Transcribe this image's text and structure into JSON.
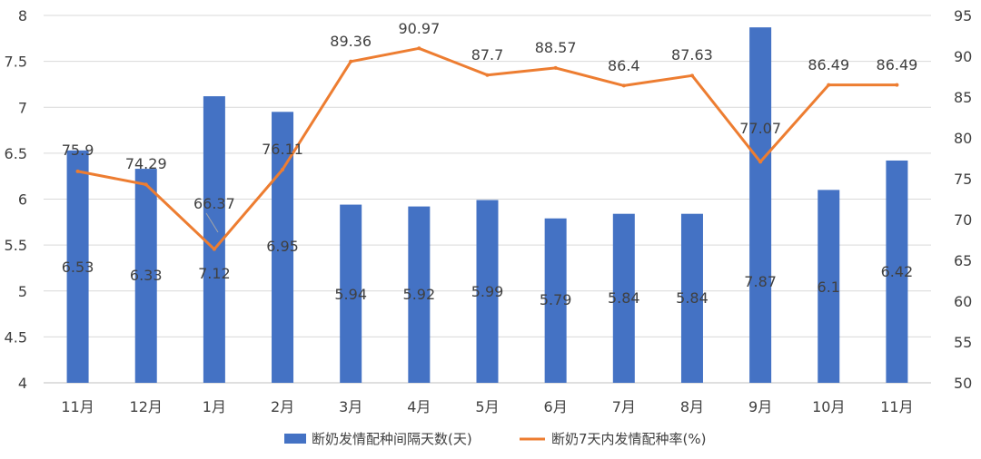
{
  "chart_data": {
    "type": "bar+line",
    "categories": [
      "11月",
      "12月",
      "1月",
      "2月",
      "3月",
      "4月",
      "5月",
      "6月",
      "7月",
      "8月",
      "9月",
      "10月",
      "11月"
    ],
    "series": [
      {
        "name": "断奶发情配种间隔天数(天)",
        "type": "bar",
        "axis": "left",
        "color": "#4472C4",
        "values": [
          6.53,
          6.33,
          7.12,
          6.95,
          5.94,
          5.92,
          5.99,
          5.79,
          5.84,
          5.84,
          7.87,
          6.1,
          6.42
        ],
        "labels": [
          "6.53",
          "6.33",
          "7.12",
          "6.95",
          "5.94",
          "5.92",
          "5.99",
          "5.79",
          "5.84",
          "5.84",
          "7.87",
          "6.1",
          "6.42"
        ]
      },
      {
        "name": "断奶7天内发情配种率(%)",
        "type": "line",
        "axis": "right",
        "color": "#ED7D31",
        "values": [
          75.9,
          74.29,
          66.37,
          76.11,
          89.36,
          90.97,
          87.7,
          88.57,
          86.4,
          87.63,
          77.07,
          86.49,
          86.49
        ],
        "labels": [
          "75.9",
          "74.29",
          "66.37",
          "76.11",
          "89.36",
          "90.97",
          "87.7",
          "88.57",
          "86.4",
          "87.63",
          "77.07",
          "86.49",
          "86.49"
        ]
      }
    ],
    "y_left": {
      "range": [
        4,
        8
      ],
      "ticks": [
        "4",
        "4.5",
        "5",
        "5.5",
        "6",
        "6.5",
        "7",
        "7.5",
        "8"
      ]
    },
    "y_right": {
      "range": [
        50,
        95
      ],
      "ticks": [
        "50",
        "55",
        "60",
        "65",
        "70",
        "75",
        "80",
        "85",
        "90",
        "95"
      ]
    },
    "grid": true,
    "legend_position": "bottom"
  }
}
